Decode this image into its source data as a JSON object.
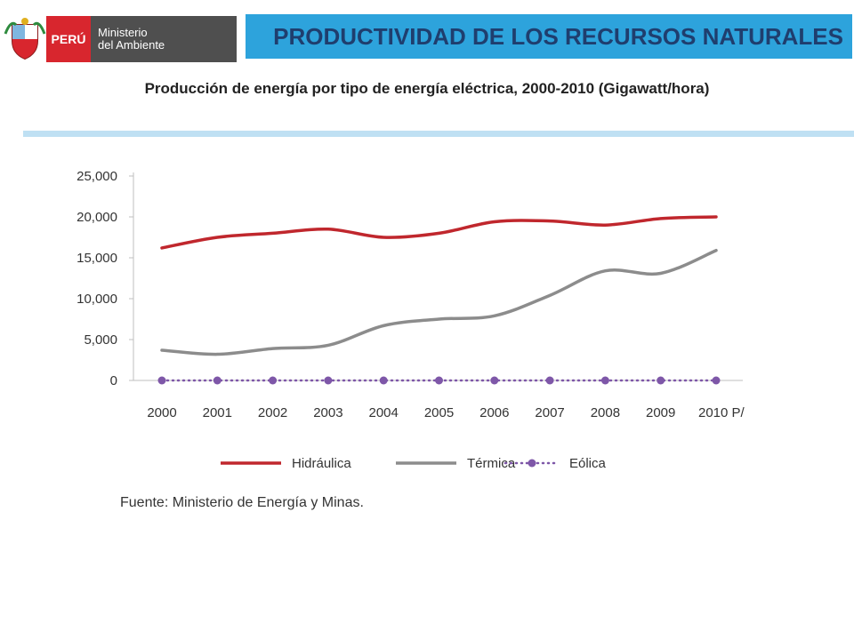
{
  "header": {
    "logo_country": "PERÚ",
    "logo_ministry_line1": "Ministerio",
    "logo_ministry_line2": "del Ambiente",
    "banner_title": "PRODUCTIVIDAD DE LOS RECURSOS NATURALES"
  },
  "subtitle": "Producción de energía por tipo de energía eléctrica, 2000-2010 (Gigawatt/hora)",
  "source": "Fuente: Ministerio de Energía y Minas.",
  "colors": {
    "brand_red": "#d8262e",
    "banner_blue": "#2da3dc",
    "title_navy": "#1f3e6e"
  },
  "chart_data": {
    "type": "line",
    "x": [
      "2000",
      "2001",
      "2002",
      "2003",
      "2004",
      "2005",
      "2006",
      "2007",
      "2008",
      "2009",
      "2010 P/"
    ],
    "y_ticks": [
      "0",
      "5,000",
      "10,000",
      "15,000",
      "20,000",
      "25,000"
    ],
    "ylim": [
      0,
      25000
    ],
    "legend_position": "bottom",
    "grid": false,
    "series": [
      {
        "name": "Hidráulica",
        "color": "#c0272d",
        "style": "solid",
        "values": [
          16200,
          17500,
          18000,
          18500,
          17500,
          18000,
          19400,
          19500,
          19000,
          19800,
          20000
        ]
      },
      {
        "name": "Térmica",
        "color": "#8c8c8c",
        "style": "solid",
        "values": [
          3700,
          3200,
          3900,
          4300,
          6700,
          7500,
          7900,
          10400,
          13400,
          13100,
          15900
        ]
      },
      {
        "name": "Eólica",
        "color": "#7e57a8",
        "style": "dotted-markers",
        "values": [
          0,
          0,
          0,
          0,
          0,
          0,
          0,
          0,
          0,
          0,
          0
        ]
      }
    ]
  }
}
